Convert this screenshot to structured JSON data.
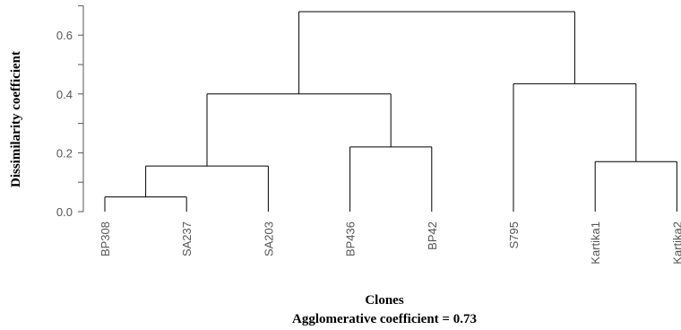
{
  "chart_data": {
    "type": "dendrogram",
    "title": "",
    "xlabel": "Clones",
    "caption": "Agglomerative coefficient = 0.73",
    "ylabel": "Dissimilarity coefficient",
    "ylim": [
      0,
      0.7
    ],
    "yticks": [
      0.0,
      0.2,
      0.4,
      0.6
    ],
    "ytick_labels": [
      "0.0",
      "0.2",
      "0.4",
      "0.6"
    ],
    "leaves": [
      "BP308",
      "SA237",
      "SA203",
      "BP436",
      "BP42",
      "S795",
      "Kartika1",
      "Kartika2"
    ],
    "merges": [
      {
        "left": "BP308",
        "right": "SA237",
        "height": 0.05
      },
      {
        "left": "Kartika1",
        "right": "Kartika2",
        "height": 0.17
      },
      {
        "left": "BP308+SA237",
        "right": "SA203",
        "height": 0.155
      },
      {
        "left": "BP436",
        "right": "BP42",
        "height": 0.22
      },
      {
        "left": "S795",
        "right": "Kartika1+Kartika2",
        "height": 0.435
      },
      {
        "left": "BP308+SA237+SA203",
        "right": "BP436+BP42",
        "height": 0.4
      },
      {
        "left": "BP308+SA237+SA203+BP436+BP42",
        "right": "S795+Kartika1+Kartika2",
        "height": 0.68
      }
    ],
    "tree": {
      "h": 0.68,
      "children": [
        {
          "h": 0.4,
          "children": [
            {
              "h": 0.155,
              "children": [
                {
                  "h": 0.05,
                  "children": [
                    {
                      "leaf": 0
                    },
                    {
                      "leaf": 1
                    }
                  ]
                },
                {
                  "leaf": 2
                }
              ]
            },
            {
              "h": 0.22,
              "children": [
                {
                  "leaf": 3
                },
                {
                  "leaf": 4
                }
              ]
            }
          ]
        },
        {
          "h": 0.435,
          "children": [
            {
              "leaf": 5
            },
            {
              "h": 0.17,
              "children": [
                {
                  "leaf": 6
                },
                {
                  "leaf": 7
                }
              ]
            }
          ]
        }
      ]
    },
    "grid": false,
    "legend": "none"
  }
}
